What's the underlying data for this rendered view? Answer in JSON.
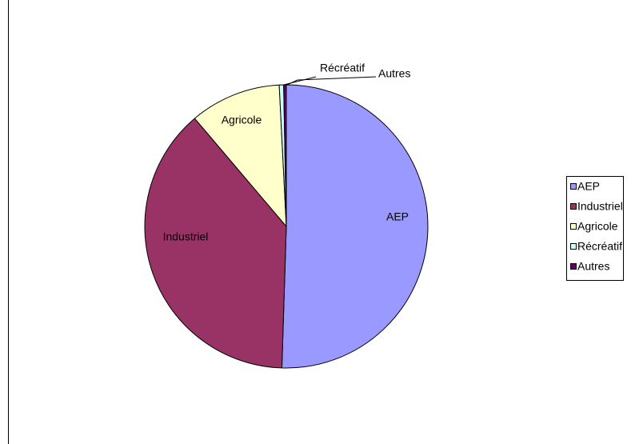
{
  "chart_data": {
    "type": "pie",
    "categories": [
      "AEP",
      "Industriel",
      "Agricole",
      "Récréatif",
      "Autres"
    ],
    "values": [
      50.5,
      38.3,
      10.4,
      0.5,
      0.3
    ],
    "colors": [
      "#9999ff",
      "#993366",
      "#ffffcc",
      "#ccffff",
      "#660066"
    ],
    "legend": "right"
  }
}
